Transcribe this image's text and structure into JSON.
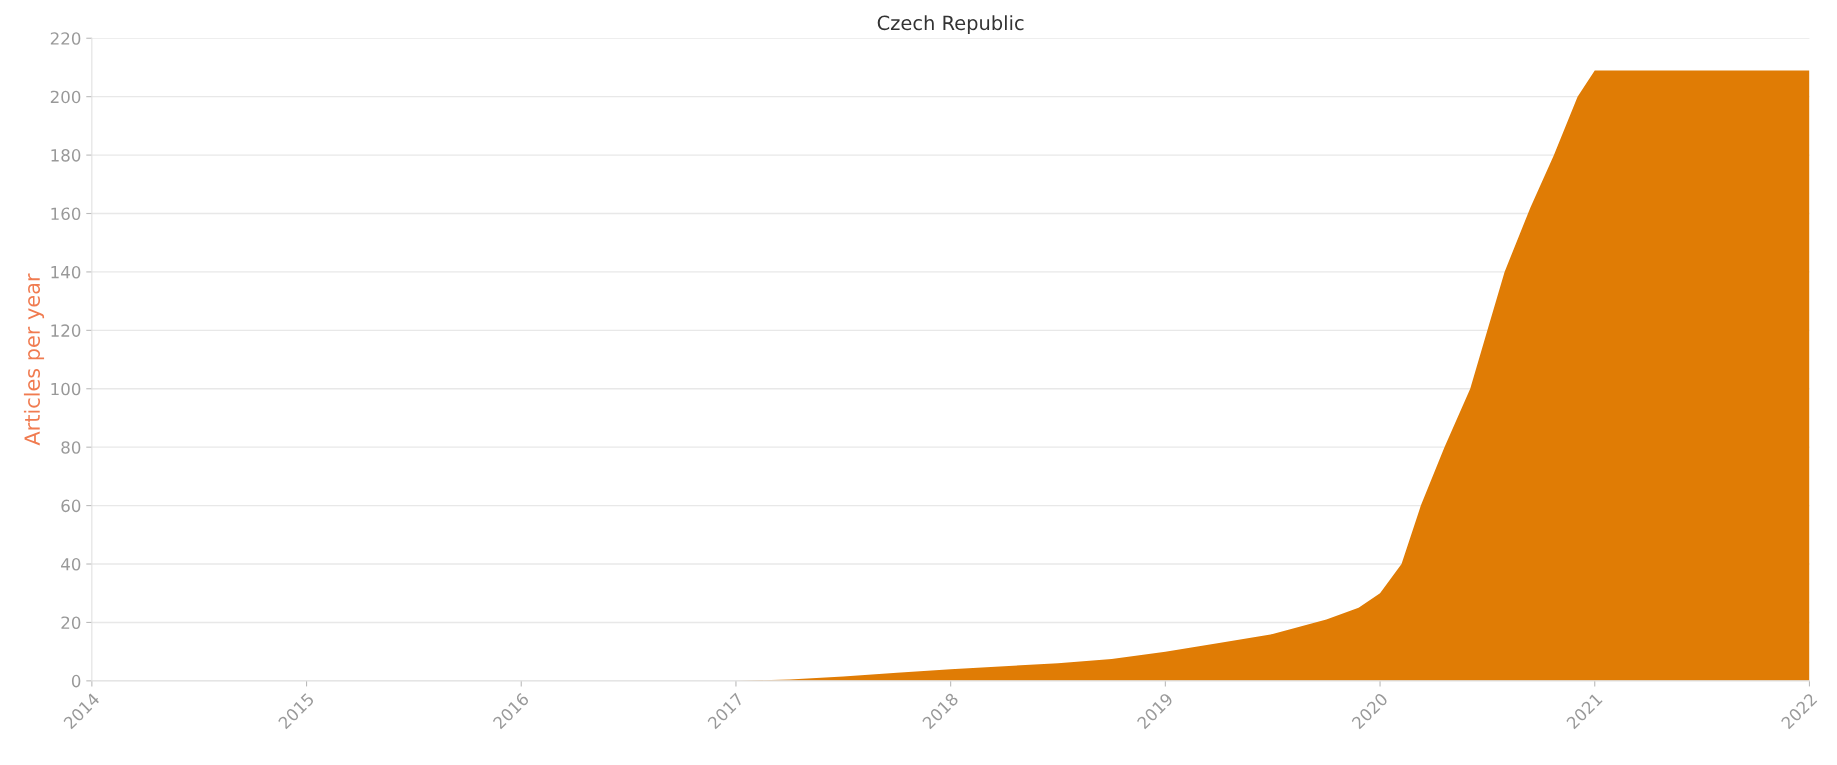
{
  "chart_data": {
    "type": "area",
    "title": "Czech Republic",
    "ylabel": "Articles per year",
    "x": [
      2014,
      2015,
      2016,
      2017,
      2017.25,
      2017.5,
      2017.75,
      2018,
      2018.25,
      2018.5,
      2018.75,
      2019,
      2019.25,
      2019.5,
      2019.75,
      2019.9,
      2020,
      2020.1,
      2020.19,
      2020.3,
      2020.42,
      2020.5,
      2020.58,
      2020.7,
      2020.81,
      2020.92,
      2021,
      2022
    ],
    "series": [
      {
        "color": "#e07c05",
        "values": [
          0,
          0,
          0,
          0,
          0.5,
          1.5,
          2.8,
          4,
          5,
          6,
          7.5,
          10,
          13,
          16,
          21,
          25,
          30,
          40,
          60,
          80,
          100,
          120,
          140,
          162,
          180,
          200,
          209,
          209
        ]
      }
    ],
    "xlim": [
      2014,
      2022
    ],
    "xticks": [
      2014,
      2015,
      2016,
      2017,
      2018,
      2019,
      2020,
      2021,
      2022
    ],
    "ylim": [
      0,
      220
    ],
    "yticks": [
      0,
      20,
      40,
      60,
      80,
      100,
      120,
      140,
      160,
      180,
      200,
      220
    ],
    "grid": "y",
    "legend": false
  }
}
